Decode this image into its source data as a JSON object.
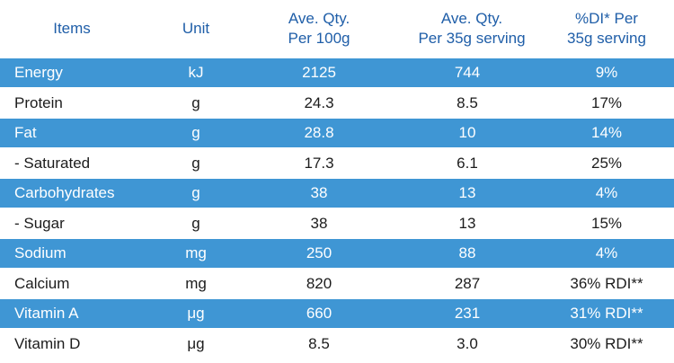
{
  "header": {
    "items": "Items",
    "unit": "Unit",
    "per100_l1": "Ave. Qty.",
    "per100_l2": "Per 100g",
    "perServ_l1": "Ave. Qty.",
    "perServ_l2": "Per 35g serving",
    "di_l1": "%DI* Per",
    "di_l2": "35g serving"
  },
  "colors": {
    "shade": "#3f96d4",
    "header_text": "#1f5ea8"
  },
  "rows": [
    {
      "item": "Energy",
      "unit": "kJ",
      "per100": "2125",
      "perServ": "744",
      "di": "9%"
    },
    {
      "item": "Protein",
      "unit": "g",
      "per100": "24.3",
      "perServ": "8.5",
      "di": "17%"
    },
    {
      "item": "Fat",
      "unit": "g",
      "per100": "28.8",
      "perServ": "10",
      "di": "14%"
    },
    {
      "item": "- Saturated",
      "unit": "g",
      "per100": "17.3",
      "perServ": "6.1",
      "di": "25%"
    },
    {
      "item": "Carbohydrates",
      "unit": "g",
      "per100": "38",
      "perServ": "13",
      "di": "4%"
    },
    {
      "item": "- Sugar",
      "unit": "g",
      "per100": "38",
      "perServ": "13",
      "di": "15%"
    },
    {
      "item": "Sodium",
      "unit": "mg",
      "per100": "250",
      "perServ": "88",
      "di": "4%"
    },
    {
      "item": "Calcium",
      "unit": "mg",
      "per100": "820",
      "perServ": "287",
      "di": "36% RDI**"
    },
    {
      "item": "Vitamin A",
      "unit": "μg",
      "per100": "660",
      "perServ": "231",
      "di": "31% RDI**"
    },
    {
      "item": "Vitamin D",
      "unit": "μg",
      "per100": "8.5",
      "perServ": "3.0",
      "di": "30% RDI**"
    }
  ]
}
